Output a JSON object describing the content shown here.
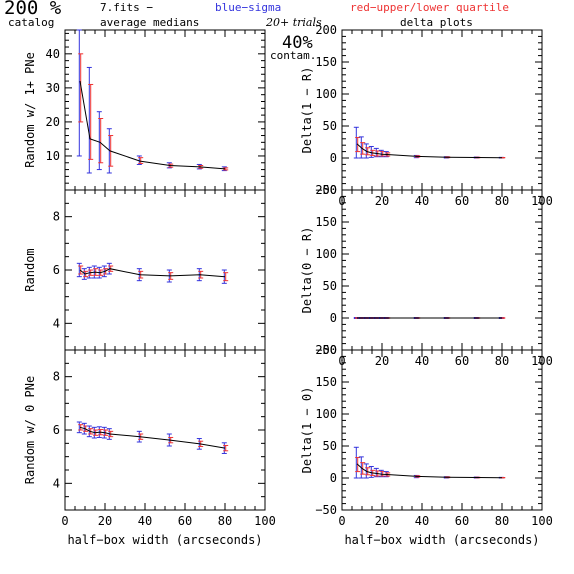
{
  "header": {
    "big_title": "200 %",
    "catalog": "catalog",
    "fits": "7.fits  −",
    "avg": "average medians",
    "blue": "blue−sigma",
    "red": "red−upper/lower quartile",
    "trials": "20+ trials",
    "delta": "delta plots",
    "contam_pct": "40%",
    "contam": "contam."
  },
  "colors": {
    "sigma": "#3333dd",
    "quartile": "#ee3333",
    "line": "#000000"
  },
  "chart_data": [
    {
      "type": "line",
      "ylabel": "Random w/ 1+ PNe",
      "xlim": [
        0,
        100
      ],
      "ylim": [
        0,
        47
      ],
      "xticks": [
        0,
        20,
        40,
        60,
        80,
        100
      ],
      "yticks": [
        10,
        20,
        30,
        40
      ],
      "show_xtick_labels": false,
      "x": [
        7.5,
        12.5,
        17.5,
        22.5,
        37.5,
        52.5,
        67.5,
        80
      ],
      "y": [
        32,
        15,
        14,
        11.5,
        8.5,
        7.2,
        6.8,
        6.2
      ],
      "sigma": [
        [
          10,
          52
        ],
        [
          5,
          36
        ],
        [
          6,
          23
        ],
        [
          5,
          18
        ],
        [
          7.5,
          10
        ],
        [
          6.5,
          8
        ],
        [
          6.2,
          7.5
        ],
        [
          5.7,
          6.8
        ]
      ],
      "quartile": [
        [
          20,
          40
        ],
        [
          9,
          31
        ],
        [
          8,
          21
        ],
        [
          7,
          16
        ],
        [
          7.8,
          9.5
        ],
        [
          6.7,
          7.6
        ],
        [
          6.4,
          7.2
        ],
        [
          5.9,
          6.5
        ]
      ]
    },
    {
      "type": "line",
      "ylabel": "Delta(1 − R)",
      "xlim": [
        0,
        100
      ],
      "ylim": [
        -50,
        200
      ],
      "xticks": [
        0,
        20,
        40,
        60,
        80,
        100
      ],
      "yticks": [
        -50,
        0,
        50,
        100,
        150,
        200
      ],
      "show_xtick_labels": true,
      "x": [
        7.5,
        10,
        12.5,
        15,
        17.5,
        20,
        22.5,
        37.5,
        52.5,
        67.5,
        80
      ],
      "y": [
        22,
        15,
        10,
        8,
        7,
        6,
        5.5,
        2.5,
        1.2,
        0.8,
        0.5
      ],
      "sigma": [
        [
          0,
          48
        ],
        [
          0,
          33
        ],
        [
          0,
          22
        ],
        [
          1,
          18
        ],
        [
          2,
          15
        ],
        [
          2,
          12
        ],
        [
          2,
          10
        ],
        [
          0.5,
          4
        ],
        [
          0,
          2
        ],
        [
          0,
          1.5
        ],
        [
          0,
          1
        ]
      ],
      "quartile": [
        [
          10,
          32
        ],
        [
          6,
          24
        ],
        [
          5,
          16
        ],
        [
          4,
          12
        ],
        [
          3,
          11
        ],
        [
          3,
          10
        ],
        [
          3,
          8
        ],
        [
          1.5,
          3.5
        ],
        [
          0.5,
          1.8
        ],
        [
          0.3,
          1.2
        ],
        [
          0.2,
          0.8
        ]
      ]
    },
    {
      "type": "line",
      "ylabel": "Random",
      "xlim": [
        0,
        100
      ],
      "ylim": [
        3,
        9
      ],
      "xticks": [
        0,
        20,
        40,
        60,
        80,
        100
      ],
      "yticks": [
        4,
        6,
        8
      ],
      "show_xtick_labels": false,
      "x": [
        7.5,
        10,
        12.5,
        15,
        17.5,
        20,
        22.5,
        37.5,
        52.5,
        67.5,
        80
      ],
      "y": [
        6.0,
        5.85,
        5.9,
        5.92,
        5.9,
        5.95,
        6.05,
        5.82,
        5.78,
        5.82,
        5.75
      ],
      "sigma": [
        [
          5.75,
          6.25
        ],
        [
          5.65,
          6.05
        ],
        [
          5.7,
          6.1
        ],
        [
          5.7,
          6.15
        ],
        [
          5.7,
          6.1
        ],
        [
          5.75,
          6.15
        ],
        [
          5.85,
          6.25
        ],
        [
          5.6,
          6.05
        ],
        [
          5.55,
          6.0
        ],
        [
          5.6,
          6.05
        ],
        [
          5.5,
          6.0
        ]
      ],
      "quartile": [
        [
          5.85,
          6.15
        ],
        [
          5.75,
          5.95
        ],
        [
          5.8,
          6.0
        ],
        [
          5.8,
          6.05
        ],
        [
          5.8,
          6.0
        ],
        [
          5.85,
          6.05
        ],
        [
          5.95,
          6.15
        ],
        [
          5.7,
          5.95
        ],
        [
          5.65,
          5.9
        ],
        [
          5.7,
          5.95
        ],
        [
          5.6,
          5.9
        ]
      ]
    },
    {
      "type": "line",
      "ylabel": "Delta(0 − R)",
      "xlim": [
        0,
        100
      ],
      "ylim": [
        -50,
        200
      ],
      "xticks": [
        0,
        20,
        40,
        60,
        80,
        100
      ],
      "yticks": [
        -50,
        0,
        50,
        100,
        150,
        200
      ],
      "show_xtick_labels": true,
      "x": [
        7.5,
        10,
        12.5,
        15,
        17.5,
        20,
        22.5,
        37.5,
        52.5,
        67.5,
        80
      ],
      "y": [
        0,
        0,
        0,
        0,
        0,
        0,
        0,
        0,
        0,
        0,
        0
      ],
      "sigma": [
        [
          -0.8,
          0.8
        ],
        [
          -0.8,
          0.8
        ],
        [
          -0.8,
          0.8
        ],
        [
          -0.8,
          0.8
        ],
        [
          -0.8,
          0.8
        ],
        [
          -0.8,
          0.8
        ],
        [
          -0.8,
          0.8
        ],
        [
          -0.8,
          0.8
        ],
        [
          -0.8,
          0.8
        ],
        [
          -0.8,
          0.8
        ],
        [
          -0.8,
          0.8
        ]
      ],
      "quartile": [
        [
          -0.4,
          0.4
        ],
        [
          -0.4,
          0.4
        ],
        [
          -0.4,
          0.4
        ],
        [
          -0.4,
          0.4
        ],
        [
          -0.4,
          0.4
        ],
        [
          -0.4,
          0.4
        ],
        [
          -0.4,
          0.4
        ],
        [
          -0.4,
          0.4
        ],
        [
          -0.4,
          0.4
        ],
        [
          -0.4,
          0.4
        ],
        [
          -0.4,
          0.4
        ]
      ]
    },
    {
      "type": "line",
      "ylabel": "Random w/ 0 PNe",
      "xlabel": "half−box width (arcseconds)",
      "xlim": [
        0,
        100
      ],
      "ylim": [
        3,
        9
      ],
      "xticks": [
        0,
        20,
        40,
        60,
        80,
        100
      ],
      "yticks": [
        4,
        6,
        8
      ],
      "show_xtick_labels": true,
      "x": [
        7.5,
        10,
        12.5,
        15,
        17.5,
        20,
        22.5,
        37.5,
        52.5,
        67.5,
        80
      ],
      "y": [
        6.1,
        6.05,
        5.95,
        5.9,
        5.92,
        5.9,
        5.85,
        5.75,
        5.62,
        5.48,
        5.32
      ],
      "sigma": [
        [
          5.9,
          6.3
        ],
        [
          5.85,
          6.25
        ],
        [
          5.75,
          6.15
        ],
        [
          5.7,
          6.1
        ],
        [
          5.72,
          6.12
        ],
        [
          5.7,
          6.1
        ],
        [
          5.65,
          6.05
        ],
        [
          5.55,
          5.95
        ],
        [
          5.4,
          5.85
        ],
        [
          5.28,
          5.68
        ],
        [
          5.12,
          5.52
        ]
      ],
      "quartile": [
        [
          6.0,
          6.2
        ],
        [
          5.95,
          6.15
        ],
        [
          5.85,
          6.05
        ],
        [
          5.8,
          6.0
        ],
        [
          5.82,
          6.02
        ],
        [
          5.8,
          6.0
        ],
        [
          5.75,
          5.95
        ],
        [
          5.65,
          5.85
        ],
        [
          5.52,
          5.72
        ],
        [
          5.38,
          5.58
        ],
        [
          5.22,
          5.42
        ]
      ]
    },
    {
      "type": "line",
      "ylabel": "Delta(1 − 0)",
      "xlabel": "half−box width (arcseconds)",
      "xlim": [
        0,
        100
      ],
      "ylim": [
        -50,
        200
      ],
      "xticks": [
        0,
        20,
        40,
        60,
        80,
        100
      ],
      "yticks": [
        -50,
        0,
        50,
        100,
        150,
        200
      ],
      "show_xtick_labels": true,
      "x": [
        7.5,
        10,
        12.5,
        15,
        17.5,
        20,
        22.5,
        37.5,
        52.5,
        67.5,
        80
      ],
      "y": [
        22,
        15,
        10,
        8,
        7,
        6,
        5.5,
        2.5,
        1.2,
        0.8,
        0.5
      ],
      "sigma": [
        [
          0,
          48
        ],
        [
          0,
          33
        ],
        [
          0,
          22
        ],
        [
          1,
          18
        ],
        [
          2,
          15
        ],
        [
          2,
          12
        ],
        [
          2,
          10
        ],
        [
          0.5,
          4
        ],
        [
          0,
          2
        ],
        [
          0,
          1.5
        ],
        [
          0,
          1
        ]
      ],
      "quartile": [
        [
          10,
          32
        ],
        [
          6,
          24
        ],
        [
          5,
          16
        ],
        [
          4,
          12
        ],
        [
          3,
          11
        ],
        [
          3,
          10
        ],
        [
          3,
          8
        ],
        [
          1.5,
          3.5
        ],
        [
          0.5,
          1.8
        ],
        [
          0.3,
          1.2
        ],
        [
          0.2,
          0.8
        ]
      ]
    }
  ]
}
